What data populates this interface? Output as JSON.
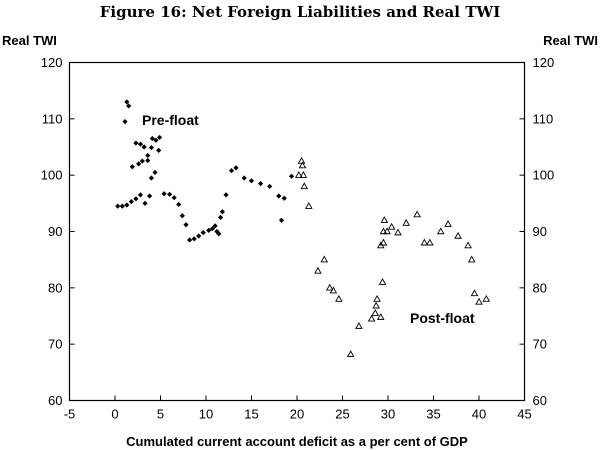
{
  "chart_data": {
    "type": "scatter",
    "title": "Figure 16: Net Foreign Liabilities and Real TWI",
    "xlabel": "Cumulated current account deficit as a per cent of GDP",
    "ylabel_left": "Real TWI",
    "ylabel_right": "Real TWI",
    "xlim": [
      -5,
      45
    ],
    "ylim": [
      60,
      120
    ],
    "x_ticks": [
      "-5",
      "0",
      "5",
      "10",
      "15",
      "20",
      "25",
      "30",
      "35",
      "40",
      "45"
    ],
    "y_ticks": [
      "60",
      "70",
      "80",
      "90",
      "100",
      "110",
      "120"
    ],
    "annotations": {
      "pre_float": "Pre-float",
      "post_float": "Post-float"
    },
    "series": [
      {
        "name": "Pre-float",
        "marker": "diamond",
        "points": [
          [
            0.3,
            94.5
          ],
          [
            0.8,
            94.5
          ],
          [
            1.3,
            94.7
          ],
          [
            1.8,
            95.3
          ],
          [
            2.3,
            95.8
          ],
          [
            2.8,
            96.5
          ],
          [
            3.3,
            95.0
          ],
          [
            3.8,
            96.3
          ],
          [
            1.3,
            113.0
          ],
          [
            1.5,
            112.3
          ],
          [
            1.1,
            109.5
          ],
          [
            1.9,
            101.5
          ],
          [
            2.3,
            105.7
          ],
          [
            2.8,
            105.5
          ],
          [
            3.2,
            105.0
          ],
          [
            3.6,
            103.5
          ],
          [
            2.6,
            102.0
          ],
          [
            3.0,
            102.5
          ],
          [
            3.6,
            102.6
          ],
          [
            4.1,
            106.5
          ],
          [
            4.5,
            106.2
          ],
          [
            4.9,
            106.7
          ],
          [
            4.0,
            104.9
          ],
          [
            4.8,
            104.4
          ],
          [
            4.4,
            100.5
          ],
          [
            4.0,
            99.5
          ],
          [
            5.4,
            96.7
          ],
          [
            6.0,
            96.6
          ],
          [
            6.5,
            96.0
          ],
          [
            7.0,
            94.8
          ],
          [
            7.4,
            92.8
          ],
          [
            7.8,
            91.2
          ],
          [
            8.2,
            88.5
          ],
          [
            8.7,
            88.7
          ],
          [
            9.2,
            89.2
          ],
          [
            9.7,
            89.8
          ],
          [
            10.3,
            90.2
          ],
          [
            10.7,
            90.5
          ],
          [
            11.0,
            91.0
          ],
          [
            11.2,
            90.0
          ],
          [
            11.4,
            89.6
          ],
          [
            11.6,
            92.5
          ],
          [
            11.8,
            93.5
          ],
          [
            12.2,
            96.5
          ],
          [
            12.8,
            100.8
          ],
          [
            13.3,
            101.3
          ],
          [
            14.2,
            99.5
          ],
          [
            15.0,
            99.0
          ],
          [
            16.0,
            98.5
          ],
          [
            17.0,
            98.0
          ],
          [
            18.0,
            96.3
          ],
          [
            18.6,
            95.9
          ],
          [
            18.3,
            92.0
          ],
          [
            19.4,
            99.8
          ]
        ]
      },
      {
        "name": "Post-float",
        "marker": "triangle",
        "points": [
          [
            20.2,
            100.0
          ],
          [
            20.5,
            102.5
          ],
          [
            20.6,
            101.7
          ],
          [
            20.7,
            100.0
          ],
          [
            20.8,
            98.0
          ],
          [
            21.3,
            94.5
          ],
          [
            22.3,
            83.0
          ],
          [
            23.0,
            85.0
          ],
          [
            23.6,
            80.0
          ],
          [
            24.0,
            79.5
          ],
          [
            24.6,
            78.0
          ],
          [
            25.9,
            68.2
          ],
          [
            26.8,
            73.2
          ],
          [
            28.2,
            74.5
          ],
          [
            28.6,
            75.5
          ],
          [
            28.7,
            76.8
          ],
          [
            28.8,
            78.0
          ],
          [
            29.2,
            74.8
          ],
          [
            29.4,
            81.0
          ],
          [
            29.2,
            87.5
          ],
          [
            29.5,
            88.0
          ],
          [
            29.6,
            92.0
          ],
          [
            29.9,
            90.0
          ],
          [
            29.5,
            90.0
          ],
          [
            30.4,
            90.8
          ],
          [
            31.1,
            89.8
          ],
          [
            32.0,
            91.5
          ],
          [
            33.2,
            93.0
          ],
          [
            34.0,
            88.0
          ],
          [
            34.6,
            88.0
          ],
          [
            35.8,
            90.0
          ],
          [
            36.6,
            91.3
          ],
          [
            37.7,
            89.2
          ],
          [
            38.8,
            87.5
          ],
          [
            39.2,
            85.0
          ],
          [
            39.5,
            79.0
          ],
          [
            40.0,
            77.5
          ],
          [
            40.8,
            78.0
          ]
        ]
      }
    ]
  }
}
